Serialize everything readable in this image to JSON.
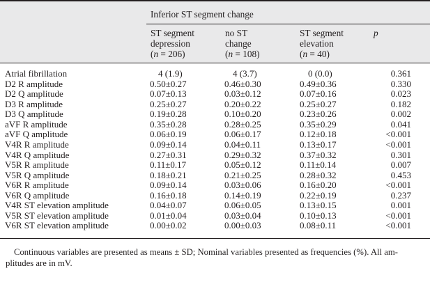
{
  "table": {
    "group_header": "Inferior ST segment change",
    "columns": [
      {
        "line1": "ST segment",
        "line2": "depression",
        "n_prefix": "(",
        "n_label": "n",
        "n_value": " = 206)"
      },
      {
        "line1": "no ST",
        "line2": "change",
        "n_prefix": "(",
        "n_label": "n",
        "n_value": " = 108)"
      },
      {
        "line1": "ST segment",
        "line2": "elevation",
        "n_prefix": "(",
        "n_label": "n",
        "n_value": " = 40)"
      }
    ],
    "p_header": "p",
    "rows": [
      {
        "label": "Atrial fibrillation",
        "values": [
          "4 (1.9)",
          "4 (3.7)",
          "0 (0.0)"
        ],
        "p": "0.361"
      },
      {
        "label": "D2 R amplitude",
        "values": [
          "0.50±0.27",
          "0.46±0.30",
          "0.49±0.36"
        ],
        "p": "0.330"
      },
      {
        "label": "D2 Q amplitude",
        "values": [
          "0.07±0.13",
          "0.03±0.12",
          "0.07±0.16"
        ],
        "p": "0.023"
      },
      {
        "label": "D3 R amplitude",
        "values": [
          "0.25±0.27",
          "0.20±0.22",
          "0.25±0.27"
        ],
        "p": "0.182"
      },
      {
        "label": "D3 Q amplitude",
        "values": [
          "0.19±0.28",
          "0.10±0.20",
          "0.23±0.26"
        ],
        "p": "0.002"
      },
      {
        "label": "aVF R amplitude",
        "values": [
          "0.35±0.28",
          "0.28±0.25",
          "0.35±0.29"
        ],
        "p": "0.041"
      },
      {
        "label": "aVF Q amplitude",
        "values": [
          "0.06±0.19",
          "0.06±0.17",
          "0.12±0.18"
        ],
        "p": "<0.001"
      },
      {
        "label": "V4R R amplitude",
        "values": [
          "0.09±0.14",
          "0.04±0.11",
          "0.13±0.17"
        ],
        "p": "<0.001"
      },
      {
        "label": "V4R Q amplitude",
        "values": [
          "0.27±0.31",
          "0.29±0.32",
          "0.37±0.32"
        ],
        "p": "0.301"
      },
      {
        "label": "V5R R amplitude",
        "values": [
          "0.11±0.17",
          "0.05±0.12",
          "0.11±0.14"
        ],
        "p": "0.007"
      },
      {
        "label": "V5R Q amplitude",
        "values": [
          "0.18±0.21",
          "0.21±0.25",
          "0.28±0.32"
        ],
        "p": "0.453"
      },
      {
        "label": "V6R R amplitude",
        "values": [
          "0.09±0.14",
          "0.03±0.06",
          "0.16±0.20"
        ],
        "p": "<0.001"
      },
      {
        "label": "V6R Q amplitude",
        "values": [
          "0.16±0.18",
          "0.14±0.19",
          "0.22±0.19"
        ],
        "p": "0.237"
      },
      {
        "label": "V4R ST elevation amplitude",
        "values": [
          "0.04±0.07",
          "0.06±0.05",
          "0.13±0.15"
        ],
        "p": "0.001"
      },
      {
        "label": "V5R ST elevation amplitude",
        "values": [
          "0.01±0.04",
          "0.03±0.04",
          "0.10±0.13"
        ],
        "p": "<0.001"
      },
      {
        "label": "V6R ST elevation amplitude",
        "values": [
          "0.00±0.02",
          "0.00±0.03",
          "0.08±0.11"
        ],
        "p": "<0.001"
      }
    ]
  },
  "footnote": {
    "line1": "Continuous variables are presented as means ± SD; Nominal variables presented as frequencies (%). All am-",
    "line2": "plitudes are in mV."
  }
}
